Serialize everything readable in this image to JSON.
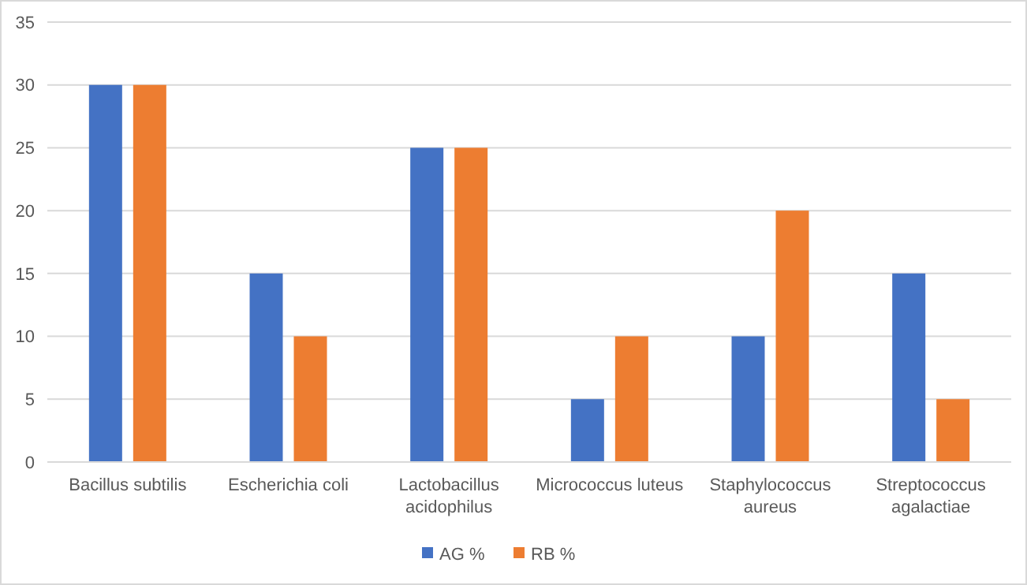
{
  "chart_data": {
    "type": "bar",
    "categories": [
      "Bacillus subtilis",
      "Escherichia coli",
      "Lactobacillus acidophilus",
      "Micrococcus luteus",
      "Staphylococcus aureus",
      "Streptococcus agalactiae"
    ],
    "series": [
      {
        "name": "AG %",
        "color": "#4472c4",
        "values": [
          30,
          15,
          25,
          5,
          10,
          15
        ]
      },
      {
        "name": "RB %",
        "color": "#ed7d31",
        "values": [
          30,
          10,
          25,
          10,
          20,
          5
        ]
      }
    ],
    "ylim": [
      0,
      35
    ],
    "yticks": [
      0,
      5,
      10,
      15,
      20,
      25,
      30,
      35
    ],
    "grid": "y",
    "legend": "bottom"
  }
}
